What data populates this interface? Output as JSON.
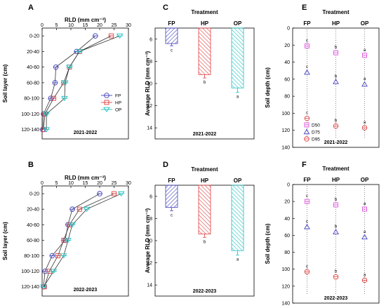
{
  "colors": {
    "FP": "#4040c0",
    "HP": "#e04040",
    "OP": "#20c0c0",
    "D50": "#e050e0",
    "D75": "#4040c0",
    "D95": "#e04040"
  },
  "chart_data": [
    {
      "panel": "A",
      "type": "line",
      "title": "RLD (mm cm⁻³)",
      "ylabel": "Soil layer (cm)",
      "season": "2021-2022",
      "xticks": [
        "0",
        "5",
        "10",
        "15",
        "20",
        "25",
        "30"
      ],
      "xlim": [
        0,
        30
      ],
      "categories": [
        "0-20",
        "20-40",
        "40-60",
        "60-80",
        "80-100",
        "100-120",
        "120-140"
      ],
      "legend": [
        "FP",
        "HP",
        "OP"
      ],
      "series": [
        {
          "name": "FP",
          "values": [
            18.5,
            12.0,
            4.8,
            4.5,
            3.0,
            0.5,
            0.2
          ]
        },
        {
          "name": "HP",
          "values": [
            24.0,
            13.0,
            9.5,
            7.5,
            4.0,
            1.0,
            0.5
          ]
        },
        {
          "name": "OP",
          "values": [
            27.0,
            13.0,
            9.5,
            8.0,
            7.8,
            1.5,
            1.5
          ]
        }
      ]
    },
    {
      "panel": "B",
      "type": "line",
      "title": "RLD (mm cm⁻³)",
      "ylabel": "Soil layer (cm)",
      "season": "2022-2023",
      "xticks": [
        "0",
        "5",
        "10",
        "15",
        "20",
        "25",
        "30"
      ],
      "xlim": [
        0,
        30
      ],
      "categories": [
        "0-20",
        "20-40",
        "40-60",
        "60-80",
        "80-100",
        "100-120",
        "120-140"
      ],
      "series": [
        {
          "name": "FP",
          "values": [
            20.0,
            10.5,
            9.0,
            8.0,
            3.5,
            1.0,
            0.5
          ]
        },
        {
          "name": "HP",
          "values": [
            25.0,
            13.0,
            9.5,
            7.5,
            5.5,
            2.5,
            0.8
          ]
        },
        {
          "name": "OP",
          "values": [
            27.5,
            15.5,
            10.5,
            9.0,
            7.5,
            4.0,
            0.5
          ]
        }
      ]
    },
    {
      "panel": "C",
      "type": "bar",
      "title": "Treatment",
      "ylabel": "Average RLD (mm cm⁻³)",
      "season": "2021-2022",
      "categories": [
        "FP",
        "HP",
        "OP"
      ],
      "values": [
        6.4,
        9.2,
        10.4
      ],
      "errors": [
        0.2,
        0.3,
        0.4
      ],
      "letters": [
        "c",
        "b",
        "a"
      ],
      "ylim": [
        5,
        15
      ],
      "yticks": [
        "6",
        "8",
        "10",
        "12",
        "14"
      ]
    },
    {
      "panel": "D",
      "type": "bar",
      "title": "Treatment",
      "ylabel": "Average RLD (mm cm⁻³)",
      "season": "2022-2023",
      "categories": [
        "FP",
        "HP",
        "OP"
      ],
      "values": [
        7.0,
        9.4,
        10.9
      ],
      "errors": [
        0.3,
        0.3,
        0.4
      ],
      "letters": [
        "c",
        "b",
        "a"
      ],
      "ylim": [
        5,
        15
      ],
      "yticks": [
        "6",
        "8",
        "10",
        "12",
        "14"
      ]
    },
    {
      "panel": "E",
      "type": "scatter",
      "title": "Treatment",
      "ylabel": "Soil depth (cm)",
      "season": "2021-2022",
      "categories": [
        "FP",
        "HP",
        "OP"
      ],
      "ylim": [
        0,
        140
      ],
      "yticks": [
        "0",
        "20",
        "40",
        "60",
        "80",
        "100",
        "120",
        "140"
      ],
      "legend": [
        "D50",
        "D75",
        "D95"
      ],
      "series": [
        {
          "name": "D50",
          "values": [
            21,
            29,
            32
          ],
          "letters": [
            "c",
            "b",
            "a"
          ]
        },
        {
          "name": "D75",
          "values": [
            52,
            63,
            66
          ],
          "letters": [
            "c",
            "b",
            "a"
          ]
        },
        {
          "name": "D95",
          "values": [
            106,
            115,
            117
          ],
          "letters": [
            "c",
            "b",
            "a"
          ]
        }
      ]
    },
    {
      "panel": "F",
      "type": "scatter",
      "title": "Treatment",
      "ylabel": "Soil depth (cm)",
      "season": "2022-2023",
      "categories": [
        "FP",
        "HP",
        "OP"
      ],
      "ylim": [
        0,
        140
      ],
      "yticks": [
        "0",
        "20",
        "40",
        "60",
        "80",
        "100",
        "120",
        "140"
      ],
      "series": [
        {
          "name": "D50",
          "values": [
            20,
            24,
            29
          ],
          "letters": [
            "c",
            "b",
            "a"
          ]
        },
        {
          "name": "D75",
          "values": [
            50,
            56,
            62
          ],
          "letters": [
            "c",
            "b",
            "a"
          ]
        },
        {
          "name": "D95",
          "values": [
            103,
            109,
            113
          ],
          "letters": [
            "c",
            "b",
            "a"
          ]
        }
      ]
    }
  ]
}
